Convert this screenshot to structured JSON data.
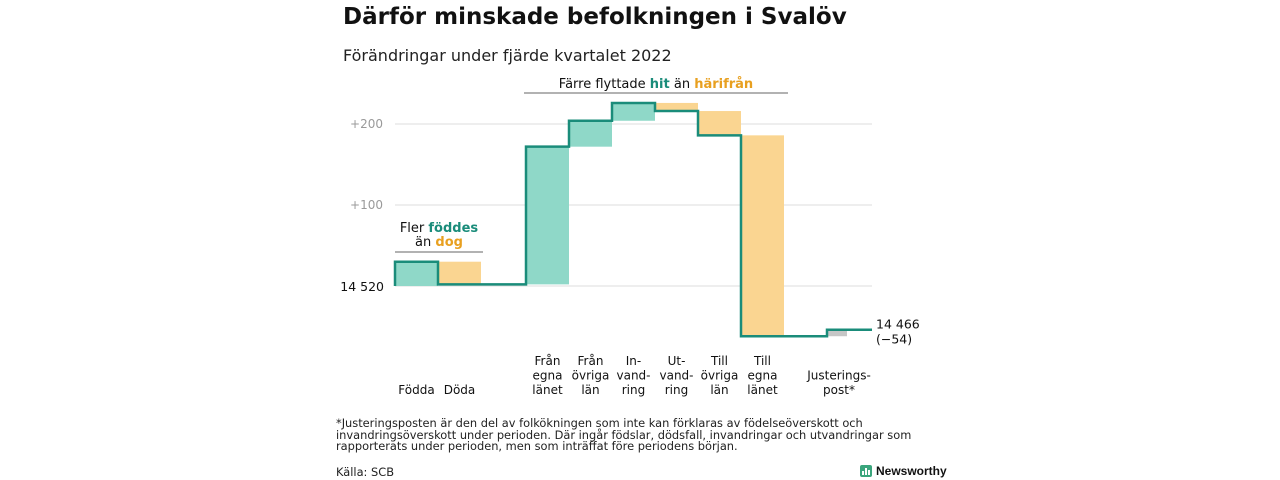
{
  "header": {
    "title": "Därför minskade befolkningen i Svalöv",
    "subtitle": "Förändringar under fjärde kvartalet 2022"
  },
  "colors": {
    "gain": "#8fd8c8",
    "loss": "#fad591",
    "line": "#1a8c7a",
    "adjustment": "#c6c6c6",
    "grid": "#dddddd",
    "tick": "#9a9a9a",
    "brand": "#3aa57c"
  },
  "chart_data": {
    "type": "waterfall",
    "start_label": "14 520",
    "end_label": "14 466",
    "end_change_label": "(−54)",
    "y_ticks": [
      {
        "value": 200,
        "label": "+200"
      },
      {
        "value": 100,
        "label": "+100"
      }
    ],
    "ylim": [
      -70,
      230
    ],
    "steps": [
      {
        "label": [
          "Födda"
        ],
        "value": 30,
        "kind": "gain"
      },
      {
        "label": [
          "Döda"
        ],
        "value": -28,
        "kind": "loss"
      },
      {
        "label": [
          "Från",
          "egna",
          "länet"
        ],
        "value": 170,
        "kind": "gain"
      },
      {
        "label": [
          "Från",
          "övriga",
          "län"
        ],
        "value": 32,
        "kind": "gain"
      },
      {
        "label": [
          "In-",
          "vand-",
          "ring"
        ],
        "value": 22,
        "kind": "gain"
      },
      {
        "label": [
          "Ut-",
          "vand-",
          "ring"
        ],
        "value": -10,
        "kind": "loss"
      },
      {
        "label": [
          "Till",
          "övriga",
          "län"
        ],
        "value": -30,
        "kind": "loss"
      },
      {
        "label": [
          "Till",
          "egna",
          "länet"
        ],
        "value": -248,
        "kind": "loss"
      },
      {
        "label": [
          "Justerings-",
          "post*"
        ],
        "value": 8,
        "kind": "adjustment"
      }
    ],
    "annotations": {
      "births": {
        "before": "Fler ",
        "gain": "föddes",
        "line2_before": "än ",
        "loss": "dog"
      },
      "migration": {
        "before": "Färre flyttade ",
        "gain": "hit",
        "middle": " än ",
        "loss": "härifrån"
      }
    }
  },
  "footnote": "*Justeringsposten är den del av folkökningen som inte kan förklaras av födelseöverskott och invandringsöverskott under perioden. Där ingår födslar, dödsfall, invandringar och utvandringar som rapporterats under perioden, men som inträffat före periodens början.",
  "source": "Källa: SCB",
  "brand": "Newsworthy"
}
